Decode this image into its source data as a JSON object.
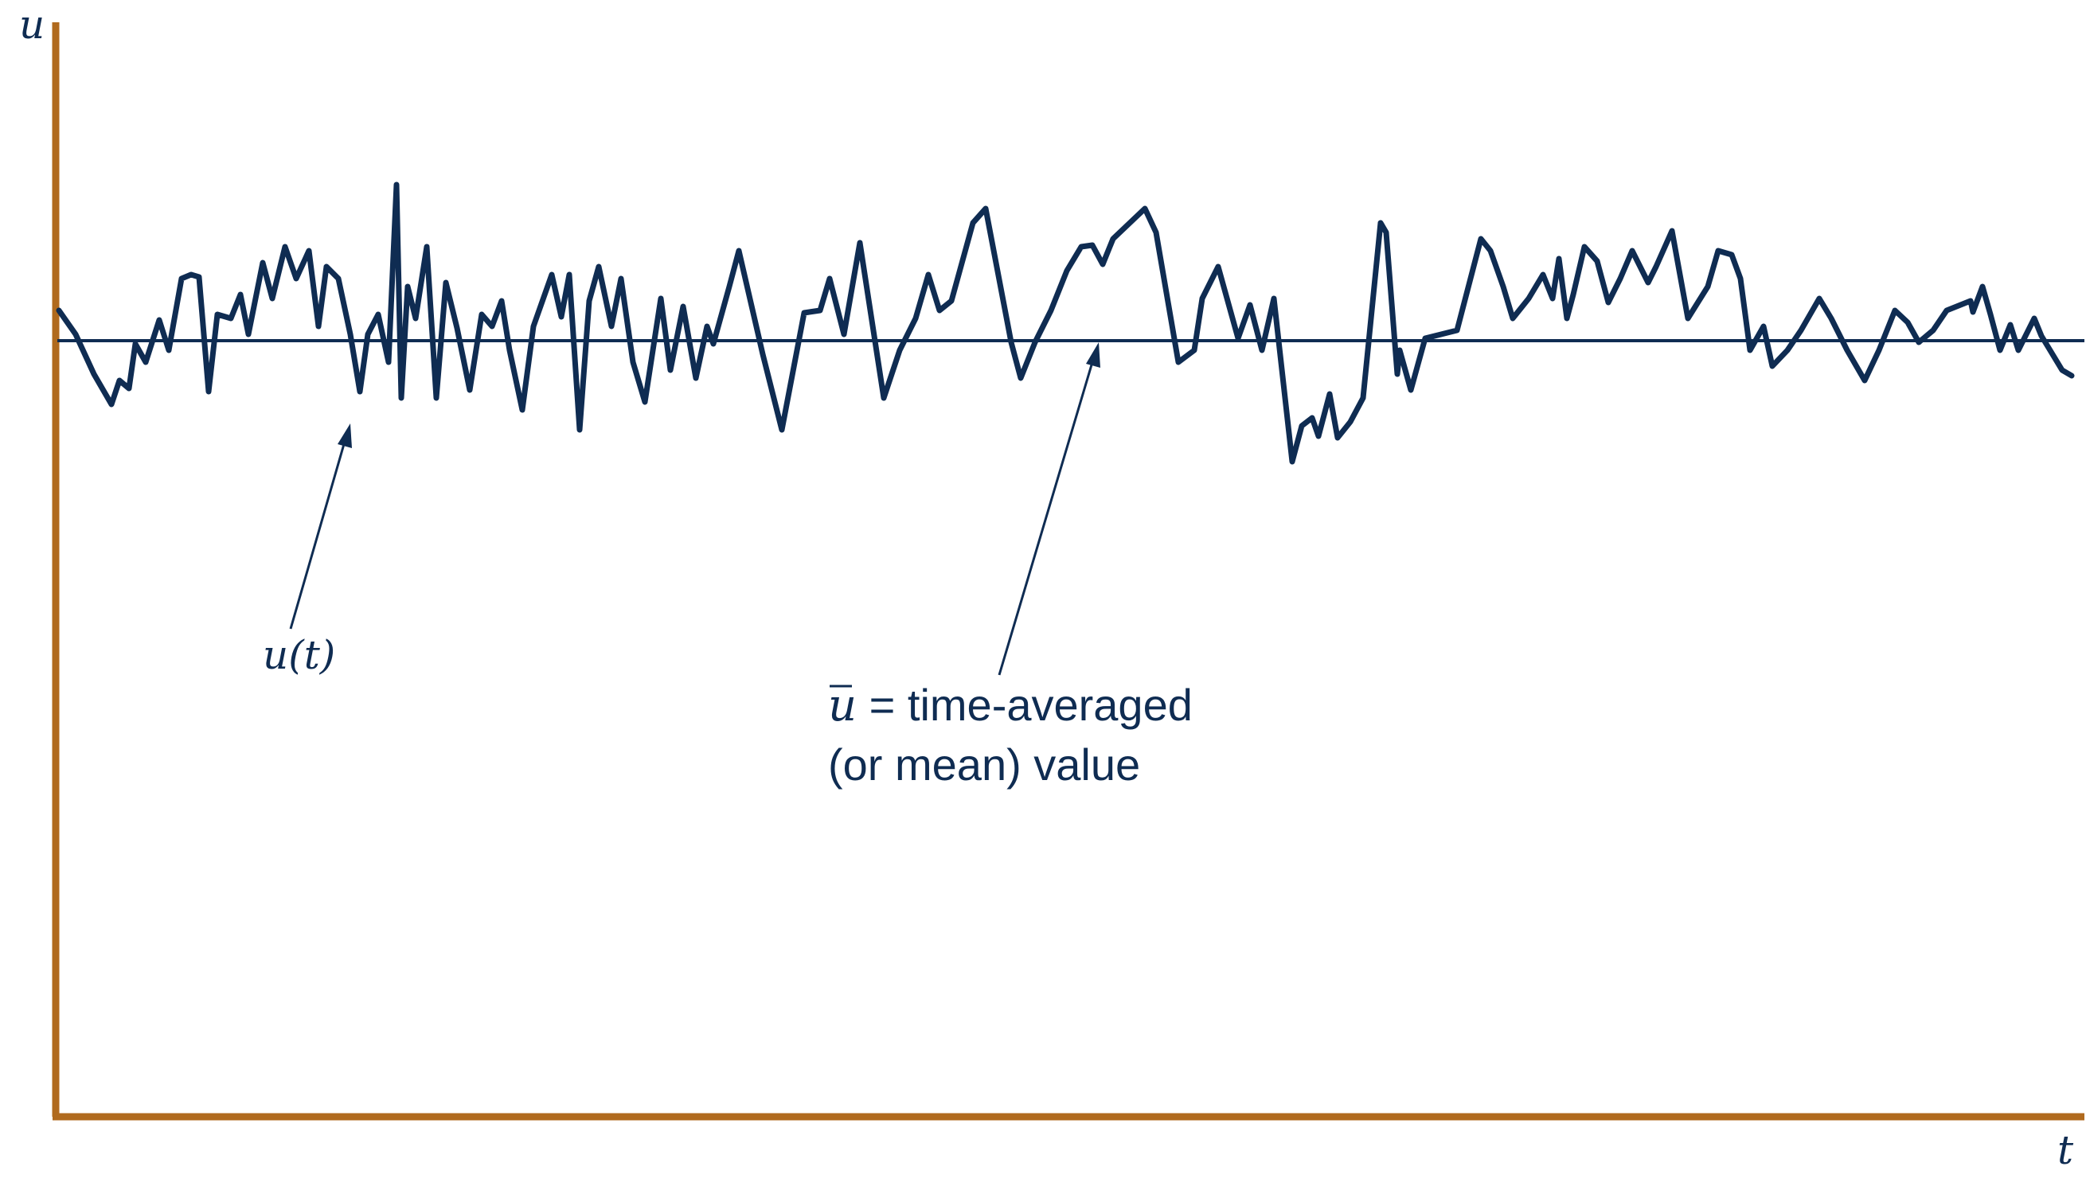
{
  "axes": {
    "y_label": "u",
    "x_label": "t"
  },
  "signal": {
    "label": "u(t)"
  },
  "mean": {
    "symbol": "u",
    "label_line1_suffix": " = time-averaged",
    "label_line2": "(or mean) value"
  },
  "colors": {
    "axis": "#b06a1e",
    "signal": "#0f2c52",
    "mean_line": "#0f2c52",
    "text": "#0f2c52"
  }
}
